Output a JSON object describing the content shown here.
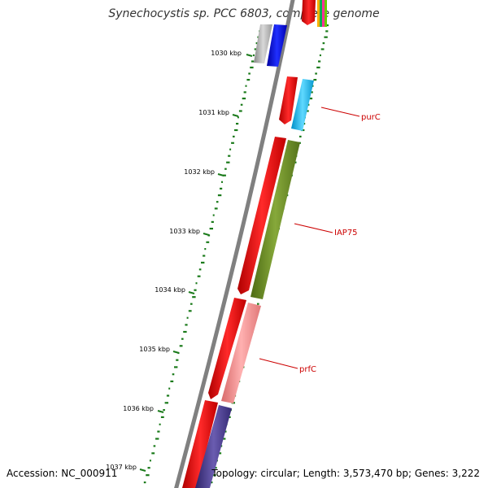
{
  "header": {
    "title": "Synechocystis sp. PCC 6803, complete genome"
  },
  "footer": {
    "accession": "Accession: NC_000911",
    "stats": "Topology: circular; Length: 3,573,470 bp; Genes: 3,222"
  },
  "ruler": {
    "ticks": [
      {
        "label": "1030 kbp"
      },
      {
        "label": "1031 kbp"
      },
      {
        "label": "1032 kbp"
      },
      {
        "label": "1033 kbp"
      },
      {
        "label": "1034 kbp"
      },
      {
        "label": "1035 kbp"
      },
      {
        "label": "1036 kbp"
      },
      {
        "label": "1037 kbp"
      }
    ]
  },
  "genes": [
    {
      "name": "purC",
      "color": "#29b6e8"
    },
    {
      "name": "IAP75",
      "color": "#6b8e23"
    },
    {
      "name": "prfC",
      "color": "#f08a8a"
    }
  ],
  "colors": {
    "backbone": "#808080",
    "cds_red": "#ff0000",
    "gc_dots": "#1a7a1a",
    "label_line": "#cc0000",
    "blue": "#0000ee",
    "grey": "#b0b0b0",
    "purple": "#4b3f8f"
  }
}
